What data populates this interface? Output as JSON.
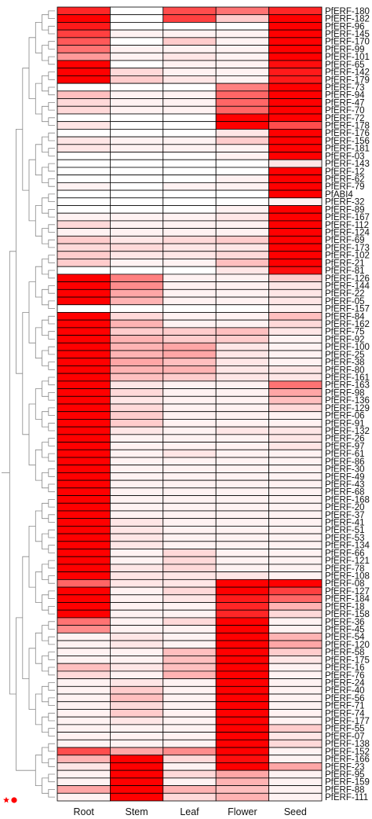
{
  "chart_data": {
    "type": "heatmap",
    "title": "",
    "xlabel": "",
    "ylabel": "",
    "color_scale": {
      "low": "#ffffff",
      "high": "#ff0000"
    },
    "value_range": [
      0,
      1
    ],
    "legend_markers": [
      {
        "symbol": "star",
        "color": "#ff0000"
      },
      {
        "symbol": "circle",
        "color": "#ff0000"
      }
    ],
    "columns": [
      "Root",
      "Stem",
      "Leaf",
      "Flower",
      "Seed"
    ],
    "rows": [
      {
        "gene": "PfERF-180",
        "values": [
          0.85,
          0.0,
          0.7,
          0.55,
          0.85
        ]
      },
      {
        "gene": "PfERF-182",
        "values": [
          1.0,
          0.0,
          0.75,
          0.2,
          1.0
        ]
      },
      {
        "gene": "PfERF-96",
        "values": [
          0.9,
          0.0,
          0.0,
          0.0,
          1.0
        ]
      },
      {
        "gene": "PfERF-145",
        "values": [
          0.75,
          0.05,
          0.05,
          0.05,
          1.0
        ]
      },
      {
        "gene": "PfERF-170",
        "values": [
          0.65,
          0.0,
          0.2,
          0.05,
          1.0
        ]
      },
      {
        "gene": "PfERF-99",
        "values": [
          0.55,
          0.05,
          0.05,
          0.05,
          1.0
        ]
      },
      {
        "gene": "PfERF-101",
        "values": [
          0.4,
          0.05,
          0.1,
          0.05,
          1.0
        ]
      },
      {
        "gene": "PfERF-65",
        "values": [
          1.0,
          0.0,
          0.05,
          0.05,
          0.95
        ]
      },
      {
        "gene": "PfERF-142",
        "values": [
          1.0,
          0.15,
          0.05,
          0.05,
          0.9
        ]
      },
      {
        "gene": "PfERF-179",
        "values": [
          1.0,
          0.2,
          0.1,
          0.05,
          0.9
        ]
      },
      {
        "gene": "PfERF-73",
        "values": [
          0.0,
          0.0,
          0.0,
          0.5,
          1.0
        ]
      },
      {
        "gene": "PfERF-94",
        "values": [
          0.25,
          0.05,
          0.05,
          0.6,
          1.0
        ]
      },
      {
        "gene": "PfERF-47",
        "values": [
          0.15,
          0.05,
          0.05,
          0.6,
          1.0
        ]
      },
      {
        "gene": "PfERF-70",
        "values": [
          0.15,
          0.05,
          0.05,
          0.6,
          1.0
        ]
      },
      {
        "gene": "PfERF-72",
        "values": [
          0.0,
          0.0,
          0.0,
          1.0,
          1.0
        ]
      },
      {
        "gene": "PfERF-178",
        "values": [
          0.1,
          0.0,
          0.0,
          1.0,
          0.7
        ]
      },
      {
        "gene": "PfERF-176",
        "values": [
          0.0,
          0.0,
          0.0,
          0.1,
          1.0
        ]
      },
      {
        "gene": "PfERF-156",
        "values": [
          0.1,
          0.05,
          0.05,
          0.2,
          1.0
        ]
      },
      {
        "gene": "PfERF-181",
        "values": [
          0.1,
          0.05,
          0.05,
          0.05,
          1.0
        ]
      },
      {
        "gene": "PfERF-03",
        "values": [
          0.0,
          0.0,
          0.0,
          0.05,
          1.0
        ]
      },
      {
        "gene": "PfERF-143",
        "values": [
          0.0,
          0.0,
          0.0,
          0.0,
          0.1
        ]
      },
      {
        "gene": "PfERF-12",
        "values": [
          0.0,
          0.0,
          0.0,
          0.0,
          1.0
        ]
      },
      {
        "gene": "PfERF-62",
        "values": [
          0.0,
          0.0,
          0.0,
          0.05,
          1.0
        ]
      },
      {
        "gene": "PfERF-79",
        "values": [
          0.05,
          0.0,
          0.05,
          0.05,
          1.0
        ]
      },
      {
        "gene": "PfABI4",
        "values": [
          0.0,
          0.0,
          0.0,
          0.0,
          1.0
        ]
      },
      {
        "gene": "PfERF-32",
        "values": [
          0.0,
          0.0,
          0.0,
          0.0,
          0.05
        ]
      },
      {
        "gene": "PfERF-89",
        "values": [
          0.0,
          0.0,
          0.0,
          0.05,
          1.0
        ]
      },
      {
        "gene": "PfERF-167",
        "values": [
          0.05,
          0.05,
          0.05,
          0.1,
          1.0
        ]
      },
      {
        "gene": "PfERF-112",
        "values": [
          0.15,
          0.05,
          0.05,
          0.05,
          1.0
        ]
      },
      {
        "gene": "PfERF-124",
        "values": [
          0.05,
          0.05,
          0.05,
          0.05,
          1.0
        ]
      },
      {
        "gene": "PfERF-69",
        "values": [
          0.2,
          0.1,
          0.15,
          0.2,
          1.0
        ]
      },
      {
        "gene": "PfERF-173",
        "values": [
          0.15,
          0.15,
          0.1,
          0.1,
          1.0
        ]
      },
      {
        "gene": "PfERF-102",
        "values": [
          0.2,
          0.1,
          0.1,
          0.15,
          1.0
        ]
      },
      {
        "gene": "PfERF-21",
        "values": [
          0.2,
          0.05,
          0.05,
          0.25,
          1.0
        ]
      },
      {
        "gene": "PfERF-81",
        "values": [
          0.0,
          0.0,
          0.0,
          0.1,
          0.95
        ]
      },
      {
        "gene": "PfERF-126",
        "values": [
          1.0,
          0.5,
          0.05,
          0.05,
          0.2
        ]
      },
      {
        "gene": "PfERF-144",
        "values": [
          1.0,
          0.45,
          0.05,
          0.05,
          0.1
        ]
      },
      {
        "gene": "PfERF-22",
        "values": [
          1.0,
          0.35,
          0.05,
          0.05,
          0.1
        ]
      },
      {
        "gene": "PfERF-05",
        "values": [
          1.0,
          0.3,
          0.05,
          0.05,
          0.1
        ]
      },
      {
        "gene": "PfERF-157",
        "values": [
          0.0,
          0.0,
          0.0,
          0.0,
          0.05
        ]
      },
      {
        "gene": "PfERF-84",
        "values": [
          1.0,
          0.15,
          0.05,
          0.05,
          0.25
        ]
      },
      {
        "gene": "PfERF-162",
        "values": [
          1.0,
          0.3,
          0.05,
          0.05,
          0.15
        ]
      },
      {
        "gene": "PfERF-75",
        "values": [
          1.0,
          0.2,
          0.2,
          0.25,
          0.1
        ]
      },
      {
        "gene": "PfERF-92",
        "values": [
          1.0,
          0.3,
          0.2,
          0.2,
          0.05
        ]
      },
      {
        "gene": "PfERF-100",
        "values": [
          1.0,
          0.3,
          0.35,
          0.1,
          0.05
        ]
      },
      {
        "gene": "PfERF-25",
        "values": [
          1.0,
          0.3,
          0.35,
          0.1,
          0.05
        ]
      },
      {
        "gene": "PfERF-38",
        "values": [
          1.0,
          0.35,
          0.25,
          0.1,
          0.05
        ]
      },
      {
        "gene": "PfERF-80",
        "values": [
          1.0,
          0.3,
          0.3,
          0.1,
          0.1
        ]
      },
      {
        "gene": "PfERF-161",
        "values": [
          1.0,
          0.25,
          0.2,
          0.1,
          0.1
        ]
      },
      {
        "gene": "PfERF-163",
        "values": [
          1.0,
          0.1,
          0.05,
          0.05,
          0.55
        ]
      },
      {
        "gene": "PfERF-98",
        "values": [
          1.0,
          0.15,
          0.05,
          0.05,
          0.35
        ]
      },
      {
        "gene": "PfERF-136",
        "values": [
          1.0,
          0.1,
          0.05,
          0.05,
          0.25
        ]
      },
      {
        "gene": "PfERF-129",
        "values": [
          1.0,
          0.15,
          0.05,
          0.05,
          0.15
        ]
      },
      {
        "gene": "PfERF-06",
        "values": [
          1.0,
          0.2,
          0.05,
          0.05,
          0.05
        ]
      },
      {
        "gene": "PfERF-91",
        "values": [
          1.0,
          0.2,
          0.05,
          0.05,
          0.05
        ]
      },
      {
        "gene": "PfERF-132",
        "values": [
          1.0,
          0.1,
          0.05,
          0.1,
          0.1
        ]
      },
      {
        "gene": "PfERF-26",
        "values": [
          1.0,
          0.05,
          0.05,
          0.05,
          0.1
        ]
      },
      {
        "gene": "PfERF-97",
        "values": [
          1.0,
          0.05,
          0.05,
          0.05,
          0.1
        ]
      },
      {
        "gene": "PfERF-61",
        "values": [
          1.0,
          0.05,
          0.1,
          0.05,
          0.05
        ]
      },
      {
        "gene": "PfERF-86",
        "values": [
          1.0,
          0.05,
          0.05,
          0.05,
          0.05
        ]
      },
      {
        "gene": "PfERF-30",
        "values": [
          1.0,
          0.05,
          0.05,
          0.05,
          0.05
        ]
      },
      {
        "gene": "PfERF-49",
        "values": [
          1.0,
          0.05,
          0.05,
          0.05,
          0.05
        ]
      },
      {
        "gene": "PfERF-43",
        "values": [
          1.0,
          0.05,
          0.05,
          0.05,
          0.05
        ]
      },
      {
        "gene": "PfERF-68",
        "values": [
          1.0,
          0.05,
          0.05,
          0.05,
          0.05
        ]
      },
      {
        "gene": "PfERF-168",
        "values": [
          1.0,
          0.05,
          0.05,
          0.05,
          0.05
        ]
      },
      {
        "gene": "PfERF-20",
        "values": [
          1.0,
          0.05,
          0.05,
          0.05,
          0.05
        ]
      },
      {
        "gene": "PfERF-37",
        "values": [
          1.0,
          0.05,
          0.05,
          0.05,
          0.05
        ]
      },
      {
        "gene": "PfERF-41",
        "values": [
          1.0,
          0.1,
          0.05,
          0.05,
          0.05
        ]
      },
      {
        "gene": "PfERF-51",
        "values": [
          1.0,
          0.1,
          0.05,
          0.05,
          0.05
        ]
      },
      {
        "gene": "PfERF-53",
        "values": [
          1.0,
          0.1,
          0.05,
          0.05,
          0.05
        ]
      },
      {
        "gene": "PfERF-134",
        "values": [
          1.0,
          0.1,
          0.05,
          0.05,
          0.05
        ]
      },
      {
        "gene": "PfERF-66",
        "values": [
          1.0,
          0.05,
          0.15,
          0.05,
          0.05
        ]
      },
      {
        "gene": "PfERF-121",
        "values": [
          1.0,
          0.05,
          0.15,
          0.05,
          0.05
        ]
      },
      {
        "gene": "PfERF-78",
        "values": [
          1.0,
          0.1,
          0.15,
          0.05,
          0.05
        ]
      },
      {
        "gene": "PfERF-108",
        "values": [
          1.0,
          0.1,
          0.1,
          0.1,
          0.05
        ]
      },
      {
        "gene": "PfERF-08",
        "values": [
          0.6,
          0.1,
          0.1,
          1.0,
          1.0
        ]
      },
      {
        "gene": "PfERF-127",
        "values": [
          1.0,
          0.05,
          0.15,
          1.0,
          0.75
        ]
      },
      {
        "gene": "PfERF-184",
        "values": [
          1.0,
          0.05,
          0.1,
          0.9,
          0.6
        ]
      },
      {
        "gene": "PfERF-18",
        "values": [
          1.0,
          0.05,
          0.05,
          0.85,
          0.3
        ]
      },
      {
        "gene": "PfERF-158",
        "values": [
          1.0,
          0.05,
          0.05,
          0.85,
          0.15
        ]
      },
      {
        "gene": "PfERF-36",
        "values": [
          0.55,
          0.05,
          0.15,
          1.0,
          0.05
        ]
      },
      {
        "gene": "PfERF-45",
        "values": [
          0.45,
          0.05,
          0.05,
          1.0,
          0.05
        ]
      },
      {
        "gene": "PfERF-54",
        "values": [
          0.05,
          0.1,
          0.05,
          1.0,
          0.3
        ]
      },
      {
        "gene": "PfERF-120",
        "values": [
          0.05,
          0.1,
          0.05,
          1.0,
          0.35
        ]
      },
      {
        "gene": "PfERF-58",
        "values": [
          0.05,
          0.05,
          0.25,
          1.0,
          0.2
        ]
      },
      {
        "gene": "PfERF-175",
        "values": [
          0.05,
          0.05,
          0.25,
          1.0,
          0.1
        ]
      },
      {
        "gene": "PfERF-16",
        "values": [
          0.25,
          0.1,
          0.25,
          1.0,
          0.05
        ]
      },
      {
        "gene": "PfERF-76",
        "values": [
          0.15,
          0.05,
          0.3,
          1.0,
          0.05
        ]
      },
      {
        "gene": "PfERF-24",
        "values": [
          0.05,
          0.1,
          0.05,
          1.0,
          0.05
        ]
      },
      {
        "gene": "PfERF-40",
        "values": [
          0.05,
          0.2,
          0.05,
          1.0,
          0.05
        ]
      },
      {
        "gene": "PfERF-56",
        "values": [
          0.05,
          0.25,
          0.05,
          1.0,
          0.05
        ]
      },
      {
        "gene": "PfERF-71",
        "values": [
          0.05,
          0.15,
          0.05,
          1.0,
          0.05
        ]
      },
      {
        "gene": "PfERF-74",
        "values": [
          0.05,
          0.2,
          0.05,
          1.0,
          0.05
        ]
      },
      {
        "gene": "PfERF-177",
        "values": [
          0.05,
          0.1,
          0.05,
          1.0,
          0.05
        ]
      },
      {
        "gene": "PfERF-55",
        "values": [
          0.05,
          0.05,
          0.05,
          1.0,
          0.2
        ]
      },
      {
        "gene": "PfERF-07",
        "values": [
          0.05,
          0.05,
          0.05,
          1.0,
          0.1
        ]
      },
      {
        "gene": "PfERF-138",
        "values": [
          0.05,
          0.05,
          0.05,
          1.0,
          0.15
        ]
      },
      {
        "gene": "PfERF-152",
        "values": [
          0.7,
          0.35,
          0.45,
          1.0,
          0.05
        ]
      },
      {
        "gene": "PfERF-166",
        "values": [
          0.3,
          1.0,
          0.15,
          0.95,
          0.05
        ]
      },
      {
        "gene": "PfERF-23",
        "values": [
          0.1,
          1.0,
          0.05,
          1.0,
          0.35
        ]
      },
      {
        "gene": "PfERF-95",
        "values": [
          0.05,
          1.0,
          0.15,
          0.35,
          0.05
        ]
      },
      {
        "gene": "PfERF-159",
        "values": [
          0.05,
          1.0,
          0.05,
          0.3,
          0.05
        ]
      },
      {
        "gene": "PfERF-88",
        "values": [
          0.35,
          1.0,
          0.3,
          0.25,
          0.05
        ]
      },
      {
        "gene": "PfERF-111",
        "values": [
          0.05,
          1.0,
          0.15,
          0.3,
          0.05
        ]
      }
    ]
  }
}
